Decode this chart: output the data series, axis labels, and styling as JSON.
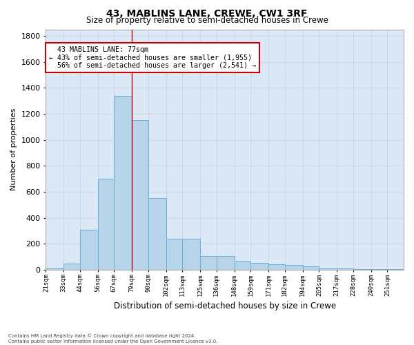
{
  "title": "43, MABLINS LANE, CREWE, CW1 3RF",
  "subtitle": "Size of property relative to semi-detached houses in Crewe",
  "xlabel": "Distribution of semi-detached houses by size in Crewe",
  "ylabel": "Number of properties",
  "bin_labels": [
    "21sqm",
    "33sqm",
    "44sqm",
    "56sqm",
    "67sqm",
    "79sqm",
    "90sqm",
    "102sqm",
    "113sqm",
    "125sqm",
    "136sqm",
    "148sqm",
    "159sqm",
    "171sqm",
    "182sqm",
    "194sqm",
    "205sqm",
    "217sqm",
    "228sqm",
    "240sqm",
    "251sqm"
  ],
  "bin_edges": [
    21,
    33,
    44,
    56,
    67,
    79,
    90,
    102,
    113,
    125,
    136,
    148,
    159,
    171,
    182,
    194,
    205,
    217,
    228,
    240,
    251,
    262
  ],
  "bar_heights": [
    8,
    45,
    305,
    700,
    1340,
    1150,
    550,
    240,
    240,
    108,
    108,
    68,
    50,
    40,
    38,
    25,
    8,
    8,
    4,
    4,
    2
  ],
  "bar_color": "#b8d4ea",
  "bar_edgecolor": "#6aaed6",
  "property_line_x": 79,
  "property_label": "43 MABLINS LANE: 77sqm",
  "smaller_pct": "43%",
  "smaller_count": "1,955",
  "larger_pct": "56%",
  "larger_count": "2,541",
  "annotation_box_color": "#ffffff",
  "annotation_box_edgecolor": "#cc0000",
  "ylim": [
    0,
    1850
  ],
  "yticks": [
    0,
    200,
    400,
    600,
    800,
    1000,
    1200,
    1400,
    1600,
    1800
  ],
  "grid_color": "#c8d8ea",
  "plot_bg_color": "#dce8f5",
  "fig_bg_color": "#ffffff",
  "footer_line1": "Contains HM Land Registry data © Crown copyright and database right 2024.",
  "footer_line2": "Contains public sector information licensed under the Open Government Licence v3.0."
}
